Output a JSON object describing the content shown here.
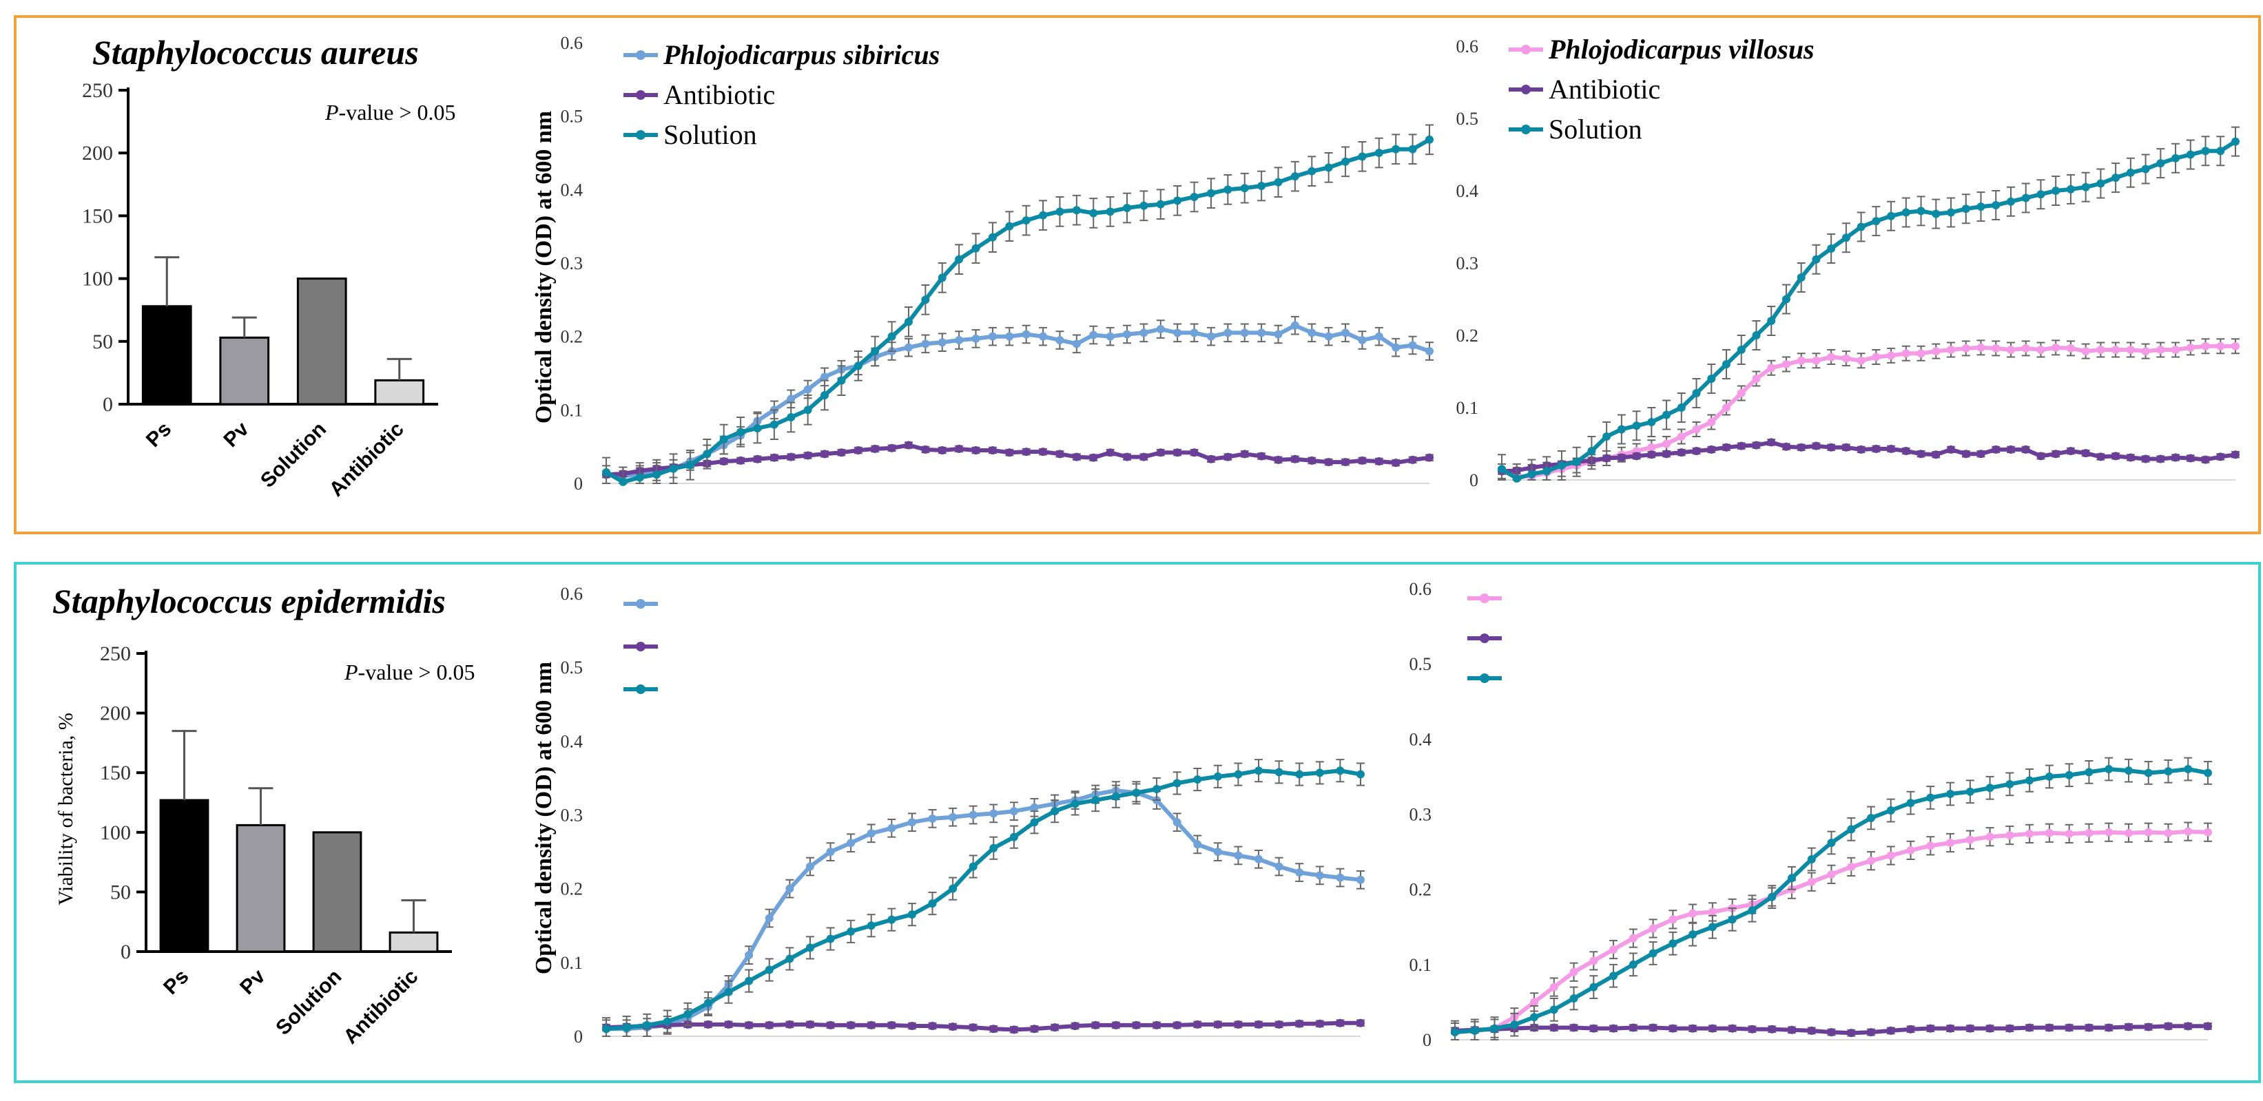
{
  "colors": {
    "ps": "#6fa2d8",
    "pv": "#f49ae6",
    "antibiotic": "#6b3f98",
    "solution": "#0a8aa5",
    "frame_top": "#f0a23c",
    "frame_bottom": "#3cd2cf",
    "bar_ps": "#000000",
    "bar_pv": "#9a9aa0",
    "bar_solution": "#7a7a7a",
    "bar_antibiotic": "#d8d8d8"
  },
  "panels": [
    {
      "species": "Staphylococcus aureus",
      "pvalue_prefix": "P",
      "pvalue_rest": "-value > 0.05",
      "bar_ylabel": "",
      "line_ylabel": "Optical density (OD) at 600 nm"
    },
    {
      "species": "Staphylococcus epidermidis",
      "pvalue_prefix": "P",
      "pvalue_rest": "-value > 0.05",
      "bar_ylabel": "Viability of bacteria, %",
      "line_ylabel": "Optical density (OD) at 600 nm"
    }
  ],
  "chart_data": [
    {
      "id": "aureus-bar",
      "type": "bar",
      "categories": [
        "Ps",
        "Pv",
        "Solution",
        "Antibiotic"
      ],
      "values": [
        78,
        53,
        100,
        19
      ],
      "errors": [
        39,
        16,
        0,
        17
      ],
      "yticks": [
        0,
        50,
        100,
        150,
        200,
        250
      ],
      "ylim": [
        0,
        250
      ],
      "ylabel": ""
    },
    {
      "id": "aureus-ps",
      "type": "line",
      "yticks": [
        "0",
        "0.1",
        "0.2",
        "0.3",
        "0.4",
        "0.5",
        "0.6"
      ],
      "ylim": [
        0,
        0.6
      ],
      "legend_bold_first": true,
      "series": [
        {
          "name": "Phlojodicarpus sibiricus",
          "color_key": "ps",
          "err": 0.012,
          "values": [
            0.012,
            0.01,
            0.012,
            0.016,
            0.02,
            0.03,
            0.04,
            0.052,
            0.065,
            0.085,
            0.1,
            0.115,
            0.128,
            0.145,
            0.155,
            0.16,
            0.172,
            0.18,
            0.185,
            0.19,
            0.192,
            0.195,
            0.197,
            0.2,
            0.2,
            0.203,
            0.2,
            0.195,
            0.19,
            0.202,
            0.2,
            0.203,
            0.205,
            0.21,
            0.205,
            0.205,
            0.2,
            0.205,
            0.205,
            0.205,
            0.203,
            0.215,
            0.205,
            0.2,
            0.205,
            0.195,
            0.2,
            0.185,
            0.188,
            0.18
          ]
        },
        {
          "name": "Antibiotic",
          "color_key": "antibiotic",
          "err": 0.004,
          "values": [
            0.012,
            0.013,
            0.017,
            0.02,
            0.022,
            0.025,
            0.027,
            0.03,
            0.031,
            0.033,
            0.035,
            0.036,
            0.038,
            0.04,
            0.042,
            0.045,
            0.047,
            0.048,
            0.052,
            0.046,
            0.045,
            0.047,
            0.045,
            0.045,
            0.042,
            0.043,
            0.043,
            0.04,
            0.036,
            0.035,
            0.042,
            0.036,
            0.036,
            0.042,
            0.042,
            0.042,
            0.033,
            0.036,
            0.04,
            0.037,
            0.032,
            0.033,
            0.031,
            0.029,
            0.029,
            0.031,
            0.03,
            0.028,
            0.032,
            0.035
          ]
        },
        {
          "name": "Solution",
          "color_key": "solution",
          "err": 0.02,
          "values": [
            0.015,
            0.002,
            0.008,
            0.012,
            0.02,
            0.025,
            0.04,
            0.06,
            0.07,
            0.075,
            0.08,
            0.09,
            0.1,
            0.12,
            0.14,
            0.16,
            0.18,
            0.2,
            0.22,
            0.25,
            0.28,
            0.305,
            0.32,
            0.335,
            0.35,
            0.358,
            0.365,
            0.37,
            0.372,
            0.368,
            0.37,
            0.375,
            0.378,
            0.38,
            0.385,
            0.39,
            0.395,
            0.4,
            0.402,
            0.405,
            0.41,
            0.418,
            0.425,
            0.43,
            0.438,
            0.445,
            0.45,
            0.455,
            0.455,
            0.468
          ]
        }
      ]
    },
    {
      "id": "aureus-pv",
      "type": "line",
      "yticks": [
        "0",
        "0.1",
        "0.2",
        "0.3",
        "0.4",
        "0.5",
        "0.6"
      ],
      "ylim": [
        0,
        0.6
      ],
      "legend_bold_first": true,
      "series": [
        {
          "name": "Phlojodicarpus villosus",
          "color_key": "pv",
          "err": 0.01,
          "values": [
            0.012,
            0.005,
            0.005,
            0.01,
            0.015,
            0.02,
            0.025,
            0.03,
            0.035,
            0.04,
            0.045,
            0.05,
            0.06,
            0.07,
            0.08,
            0.1,
            0.12,
            0.14,
            0.155,
            0.16,
            0.165,
            0.165,
            0.17,
            0.168,
            0.165,
            0.17,
            0.172,
            0.175,
            0.175,
            0.178,
            0.18,
            0.182,
            0.183,
            0.182,
            0.18,
            0.182,
            0.18,
            0.183,
            0.182,
            0.178,
            0.18,
            0.18,
            0.18,
            0.178,
            0.18,
            0.18,
            0.183,
            0.185,
            0.185,
            0.185
          ]
        },
        {
          "name": "Antibiotic",
          "color_key": "antibiotic",
          "err": 0.004,
          "values": [
            0.012,
            0.013,
            0.017,
            0.02,
            0.022,
            0.025,
            0.027,
            0.03,
            0.031,
            0.033,
            0.035,
            0.036,
            0.038,
            0.04,
            0.042,
            0.045,
            0.047,
            0.048,
            0.052,
            0.046,
            0.045,
            0.047,
            0.045,
            0.045,
            0.042,
            0.043,
            0.043,
            0.04,
            0.036,
            0.035,
            0.042,
            0.036,
            0.036,
            0.042,
            0.042,
            0.042,
            0.033,
            0.036,
            0.04,
            0.037,
            0.032,
            0.033,
            0.031,
            0.029,
            0.029,
            0.031,
            0.03,
            0.028,
            0.032,
            0.035
          ]
        },
        {
          "name": "Solution",
          "color_key": "solution",
          "err": 0.02,
          "values": [
            0.015,
            0.002,
            0.008,
            0.012,
            0.02,
            0.025,
            0.04,
            0.06,
            0.07,
            0.075,
            0.08,
            0.09,
            0.1,
            0.12,
            0.14,
            0.16,
            0.18,
            0.2,
            0.22,
            0.25,
            0.28,
            0.305,
            0.32,
            0.335,
            0.35,
            0.358,
            0.365,
            0.37,
            0.372,
            0.368,
            0.37,
            0.375,
            0.378,
            0.38,
            0.385,
            0.39,
            0.395,
            0.4,
            0.402,
            0.405,
            0.41,
            0.418,
            0.425,
            0.43,
            0.438,
            0.445,
            0.45,
            0.455,
            0.455,
            0.468
          ]
        }
      ]
    },
    {
      "id": "epidermidis-bar",
      "type": "bar",
      "categories": [
        "Ps",
        "Pv",
        "Solution",
        "Antibiotic"
      ],
      "values": [
        127,
        106,
        100,
        16
      ],
      "errors": [
        58,
        31,
        0,
        27
      ],
      "yticks": [
        0,
        50,
        100,
        150,
        200,
        250
      ],
      "ylim": [
        0,
        250
      ],
      "ylabel": "Viability of bacteria, %"
    },
    {
      "id": "epidermidis-ps",
      "type": "line",
      "yticks": [
        "0",
        "0.1",
        "0.2",
        "0.3",
        "0.4",
        "0.5",
        "0.6"
      ],
      "ylim": [
        0,
        0.6
      ],
      "legend_bold_first": false,
      "series": [
        {
          "name": "",
          "color_key": "ps",
          "err": 0.012,
          "values": [
            0.01,
            0.01,
            0.012,
            0.015,
            0.025,
            0.04,
            0.07,
            0.11,
            0.16,
            0.2,
            0.23,
            0.25,
            0.262,
            0.275,
            0.282,
            0.29,
            0.295,
            0.297,
            0.3,
            0.302,
            0.305,
            0.31,
            0.315,
            0.32,
            0.328,
            0.333,
            0.33,
            0.32,
            0.29,
            0.26,
            0.25,
            0.245,
            0.24,
            0.23,
            0.222,
            0.218,
            0.215,
            0.212
          ]
        },
        {
          "name": "",
          "color_key": "antibiotic",
          "err": 0.004,
          "values": [
            0.012,
            0.013,
            0.014,
            0.015,
            0.016,
            0.016,
            0.016,
            0.015,
            0.015,
            0.016,
            0.016,
            0.015,
            0.015,
            0.015,
            0.015,
            0.014,
            0.014,
            0.013,
            0.012,
            0.01,
            0.009,
            0.01,
            0.012,
            0.014,
            0.015,
            0.015,
            0.015,
            0.015,
            0.015,
            0.016,
            0.016,
            0.016,
            0.016,
            0.016,
            0.017,
            0.017,
            0.018,
            0.018
          ]
        },
        {
          "name": "",
          "color_key": "solution",
          "err": 0.015,
          "values": [
            0.01,
            0.012,
            0.015,
            0.02,
            0.03,
            0.045,
            0.06,
            0.075,
            0.09,
            0.105,
            0.12,
            0.132,
            0.142,
            0.15,
            0.158,
            0.165,
            0.18,
            0.2,
            0.23,
            0.255,
            0.27,
            0.29,
            0.305,
            0.315,
            0.32,
            0.325,
            0.33,
            0.335,
            0.343,
            0.348,
            0.352,
            0.355,
            0.36,
            0.358,
            0.355,
            0.357,
            0.36,
            0.355
          ]
        }
      ]
    },
    {
      "id": "epidermidis-pv",
      "type": "line",
      "yticks": [
        "0",
        "0.1",
        "0.2",
        "0.3",
        "0.4",
        "0.5",
        "0.6"
      ],
      "ylim": [
        0,
        0.6
      ],
      "legend_bold_first": false,
      "series": [
        {
          "name": "",
          "color_key": "pv",
          "err": 0.012,
          "values": [
            0.01,
            0.012,
            0.015,
            0.03,
            0.05,
            0.07,
            0.09,
            0.105,
            0.12,
            0.135,
            0.148,
            0.16,
            0.168,
            0.17,
            0.175,
            0.18,
            0.19,
            0.2,
            0.21,
            0.22,
            0.23,
            0.238,
            0.245,
            0.252,
            0.258,
            0.262,
            0.266,
            0.27,
            0.272,
            0.274,
            0.275,
            0.274,
            0.275,
            0.276,
            0.275,
            0.276,
            0.275,
            0.277,
            0.276
          ]
        },
        {
          "name": "",
          "color_key": "antibiotic",
          "err": 0.004,
          "values": [
            0.012,
            0.013,
            0.014,
            0.015,
            0.016,
            0.016,
            0.016,
            0.015,
            0.015,
            0.016,
            0.016,
            0.015,
            0.015,
            0.015,
            0.015,
            0.014,
            0.014,
            0.013,
            0.012,
            0.01,
            0.009,
            0.01,
            0.012,
            0.014,
            0.015,
            0.015,
            0.015,
            0.015,
            0.015,
            0.016,
            0.016,
            0.016,
            0.016,
            0.016,
            0.017,
            0.017,
            0.018,
            0.018,
            0.018
          ]
        },
        {
          "name": "",
          "color_key": "solution",
          "err": 0.015,
          "values": [
            0.01,
            0.012,
            0.015,
            0.02,
            0.03,
            0.04,
            0.055,
            0.07,
            0.085,
            0.1,
            0.115,
            0.128,
            0.14,
            0.15,
            0.16,
            0.172,
            0.19,
            0.215,
            0.24,
            0.262,
            0.28,
            0.295,
            0.305,
            0.315,
            0.322,
            0.327,
            0.33,
            0.335,
            0.34,
            0.345,
            0.35,
            0.352,
            0.356,
            0.36,
            0.358,
            0.355,
            0.357,
            0.36,
            0.355
          ]
        }
      ]
    }
  ]
}
